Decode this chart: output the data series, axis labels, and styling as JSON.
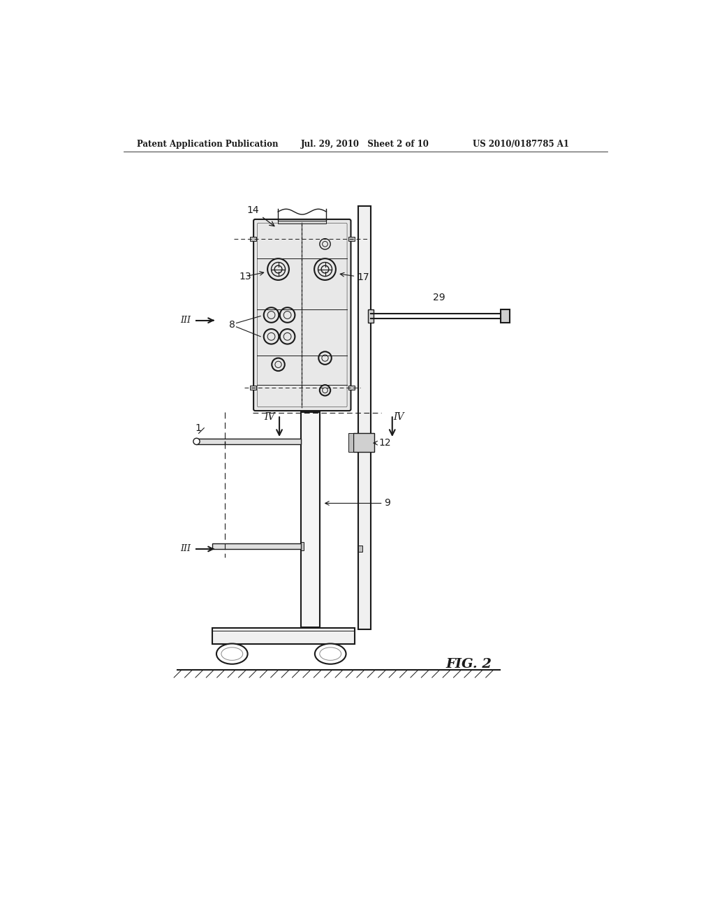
{
  "bg_color": "#ffffff",
  "header_left": "Patent Application Publication",
  "header_mid": "Jul. 29, 2010   Sheet 2 of 10",
  "header_right": "US 2010/0187785 A1",
  "fig_label": "FIG. 2",
  "line_color": "#1a1a1a"
}
